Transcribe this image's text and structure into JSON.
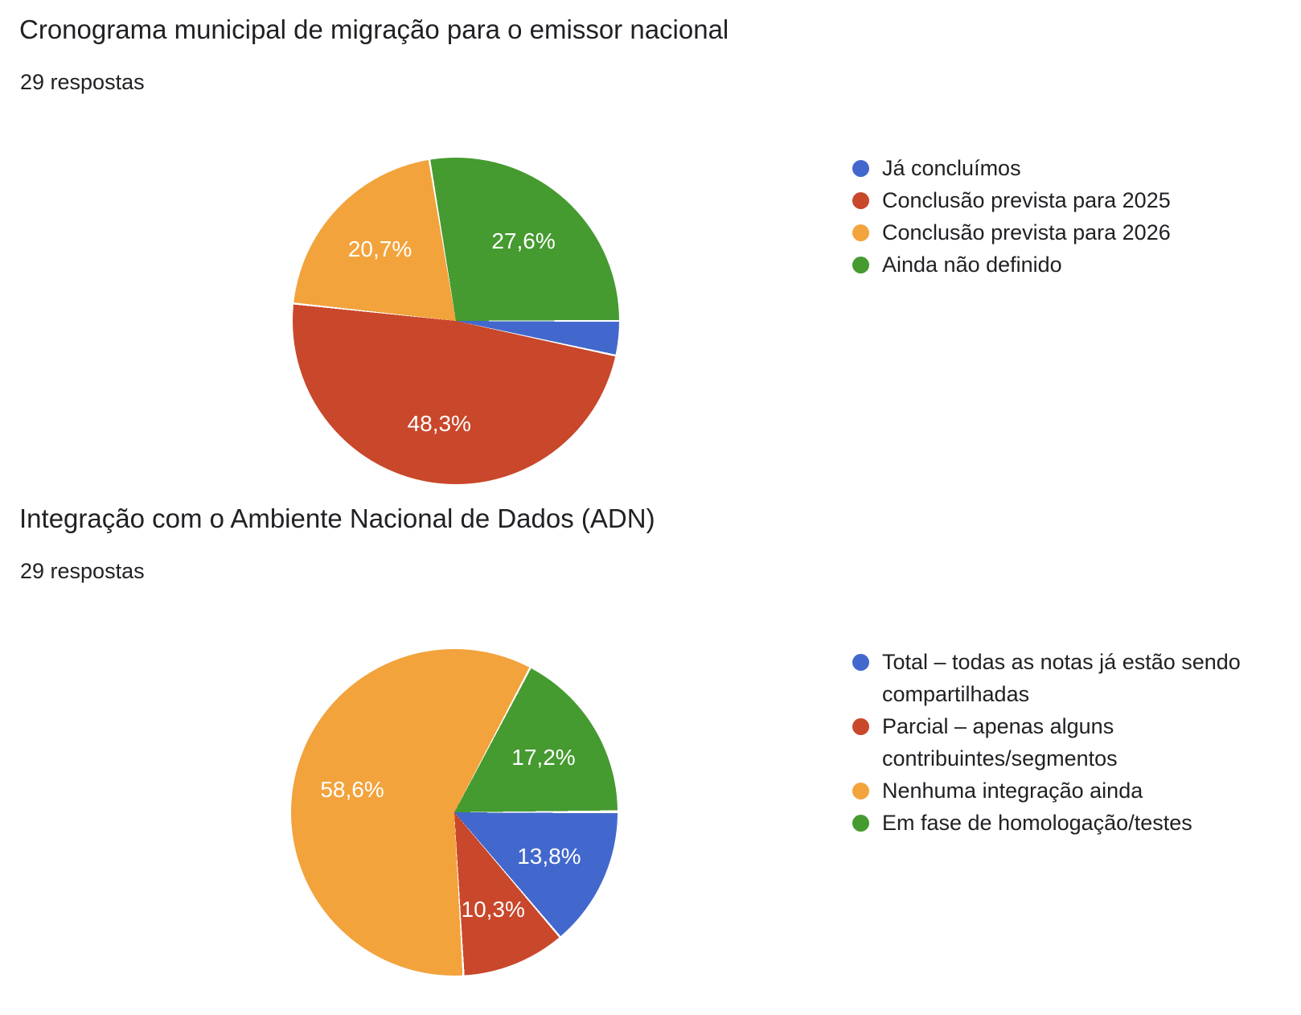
{
  "theme": {
    "background": "#ffffff",
    "text_color": "#202124",
    "slice_label_color": "#ffffff"
  },
  "chart_data": [
    {
      "type": "pie",
      "title": "Cronograma municipal de migração para o emissor nacional",
      "subtitle": "29 respostas",
      "legend_position": "right",
      "start_angle_deg": 90,
      "direction": "clockwise",
      "slices": [
        {
          "label": "Já concluímos",
          "value_pct": 3.4,
          "display": "",
          "color": "#4368cd"
        },
        {
          "label": "Conclusão prevista para 2025",
          "value_pct": 48.3,
          "display": "48,3%",
          "color": "#c9472b"
        },
        {
          "label": "Conclusão prevista para 2026",
          "value_pct": 20.7,
          "display": "20,7%",
          "color": "#f2a33c"
        },
        {
          "label": "Ainda não definido",
          "value_pct": 27.6,
          "display": "27,6%",
          "color": "#459a30"
        }
      ]
    },
    {
      "type": "pie",
      "title": "Integração com o Ambiente Nacional de Dados (ADN)",
      "subtitle": "29 respostas",
      "legend_position": "right",
      "start_angle_deg": 90,
      "direction": "clockwise",
      "slices": [
        {
          "label": "Total – todas as notas já estão sendo compartilhadas",
          "value_pct": 13.8,
          "display": "13,8%",
          "color": "#4368cd"
        },
        {
          "label": "Parcial – apenas alguns contribuintes/segmentos",
          "value_pct": 10.3,
          "display": "10,3%",
          "color": "#c9472b"
        },
        {
          "label": "Nenhuma integração ainda",
          "value_pct": 58.6,
          "display": "58,6%",
          "color": "#f2a33c"
        },
        {
          "label": "Em fase de homologação/testes",
          "value_pct": 17.2,
          "display": "17,2%",
          "color": "#459a30"
        }
      ]
    }
  ]
}
